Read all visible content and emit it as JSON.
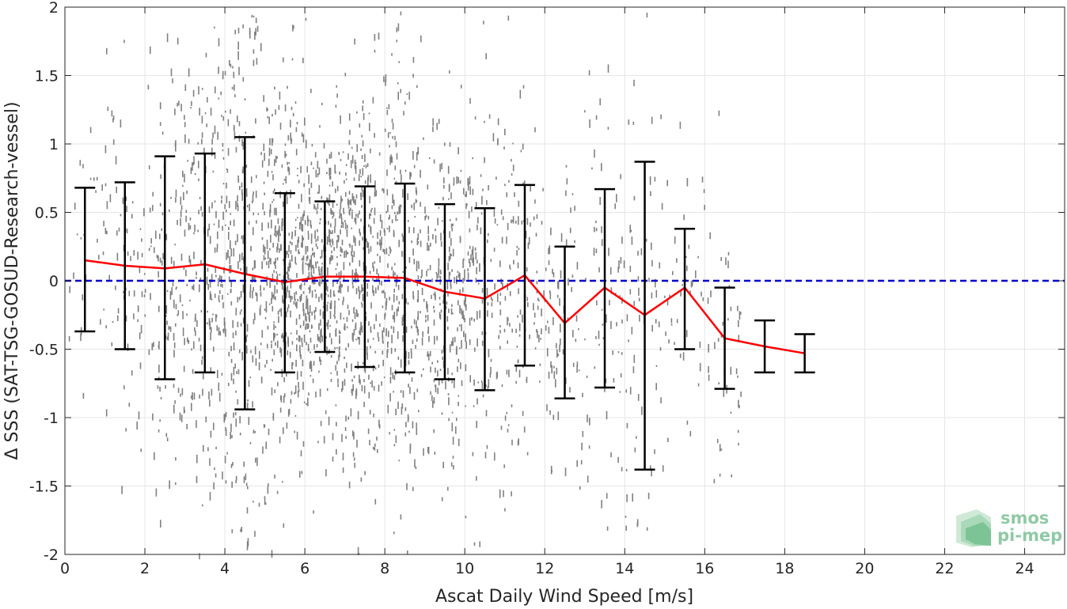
{
  "chart_data": {
    "type": "scatter",
    "title": "",
    "xlabel": "Ascat Daily Wind Speed [m/s]",
    "ylabel": "Δ SSS (SAT-TSG-GOSUD-Research-vessel)",
    "xlim": [
      0,
      25
    ],
    "ylim": [
      -2,
      2
    ],
    "x_ticks": [
      0,
      2,
      4,
      6,
      8,
      10,
      12,
      14,
      16,
      18,
      20,
      22,
      24
    ],
    "y_ticks": [
      -2,
      -1.5,
      -1,
      -0.5,
      0,
      0.5,
      1,
      1.5,
      2
    ],
    "y_tick_labels": [
      "-2",
      "-1.5",
      "-1",
      "-0.5",
      "0",
      "0.5",
      "1",
      "1.5",
      "2"
    ],
    "grid": true,
    "scatter_color": "#808080",
    "mean_line_color": "#ff0000",
    "zero_line_color": "#0000cc",
    "errorbar_color": "#000000",
    "series": [
      {
        "type": "errorbar-line",
        "x": [
          0.5,
          1.5,
          2.5,
          3.5,
          4.5,
          5.5,
          6.5,
          7.5,
          8.5,
          9.5,
          10.5,
          11.5,
          12.5,
          13.5,
          14.5,
          15.5,
          16.5,
          17.5,
          18.5
        ],
        "mean": [
          0.15,
          0.11,
          0.09,
          0.12,
          0.05,
          -0.01,
          0.03,
          0.03,
          0.02,
          -0.08,
          -0.13,
          0.04,
          -0.31,
          -0.05,
          -0.25,
          -0.05,
          -0.42,
          -0.48,
          -0.53
        ],
        "upper": [
          0.68,
          0.72,
          0.91,
          0.93,
          1.05,
          0.64,
          0.58,
          0.69,
          0.71,
          0.56,
          0.53,
          0.7,
          0.25,
          0.67,
          0.87,
          0.38,
          -0.05,
          -0.29,
          -0.39
        ],
        "lower": [
          -0.37,
          -0.5,
          -0.72,
          -0.67,
          -0.94,
          -0.67,
          -0.52,
          -0.63,
          -0.67,
          -0.72,
          -0.8,
          -0.62,
          -0.86,
          -0.78,
          -1.38,
          -0.5,
          -0.79,
          -0.67,
          -0.67
        ]
      },
      {
        "type": "reference-line",
        "y": 0
      }
    ]
  },
  "logo": {
    "line1": "smos",
    "line2": "pi-mep"
  }
}
